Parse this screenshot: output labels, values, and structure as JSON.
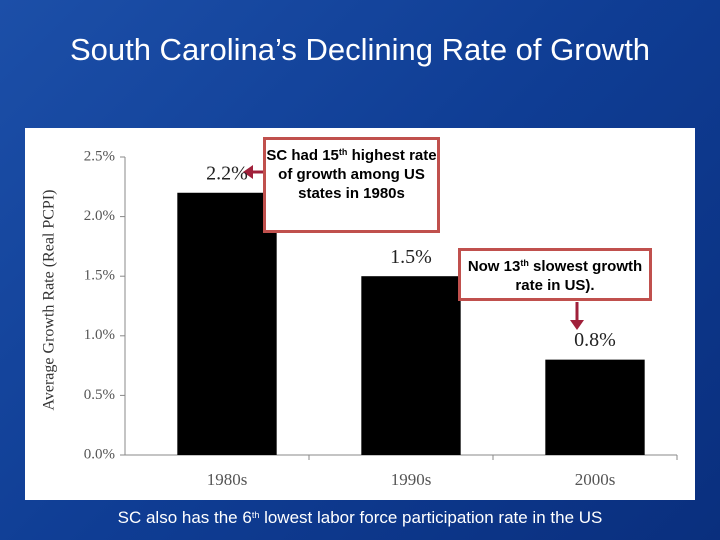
{
  "title": "South Carolina’s Declining Rate of Growth",
  "chart_data": {
    "type": "bar",
    "y_axis_label": "Average Growth Rate (Real PCPI)",
    "categories": [
      "1980s",
      "1990s",
      "2000s"
    ],
    "values": [
      2.2,
      1.5,
      0.8
    ],
    "value_labels": [
      "2.2%",
      "1.5%",
      "0.8%"
    ],
    "color": "#000000",
    "ylim": [
      0,
      2.5
    ],
    "yticks": [
      {
        "value": 0,
        "label": "0.0%"
      },
      {
        "value": 0.5,
        "label": "0.5%"
      },
      {
        "value": 1,
        "label": "1.0%"
      },
      {
        "value": 1.5,
        "label": "1.5%"
      },
      {
        "value": 2,
        "label": "2.0%"
      },
      {
        "value": 2.5,
        "label": "2.5%"
      }
    ],
    "grid": false
  },
  "annotations": [
    {
      "before": "SC had 15",
      "sup": "th",
      "after": "highest rate of growth among US states in 1980s"
    },
    {
      "before": "Now 13",
      "sup": "th",
      "after": "slowest growth rate in US)."
    }
  ],
  "footer": {
    "before": "SC also has the 6",
    "sup": "th",
    "after": "lowest labor force participation rate in the US"
  }
}
